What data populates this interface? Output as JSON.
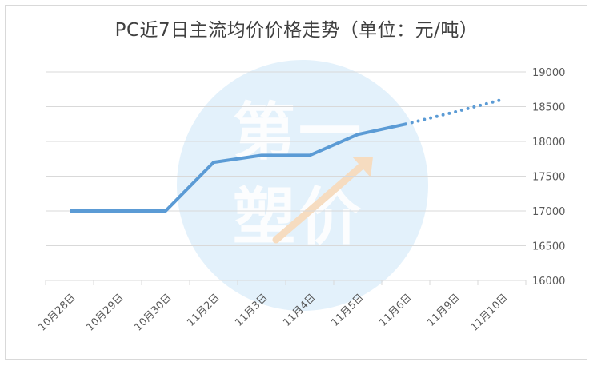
{
  "chart_data": {
    "type": "line",
    "title": "PC近7日主流均价价格走势（单位：元/吨）",
    "categories": [
      "10月28日",
      "10月29日",
      "10月30日",
      "11月2日",
      "11月3日",
      "11月4日",
      "11月5日",
      "11月6日",
      "11月9日",
      "11月10日"
    ],
    "series": [
      {
        "values": [
          17000,
          17000,
          17000,
          17700,
          17800,
          17800,
          18100,
          18250,
          null,
          null
        ]
      },
      {
        "values": [
          null,
          null,
          null,
          null,
          null,
          null,
          null,
          18250,
          18420,
          18600
        ]
      }
    ],
    "yaxis": {
      "position": "right",
      "ticks": [
        16000,
        16500,
        17000,
        17500,
        18000,
        18500,
        19000
      ]
    },
    "ylim": [
      16000,
      19000
    ],
    "grid": true,
    "colors": {
      "line": "#5b9bd5",
      "grid": "#d9d9d9",
      "text": "#595959"
    },
    "watermark": [
      "第",
      "一",
      "塑",
      "价"
    ]
  }
}
